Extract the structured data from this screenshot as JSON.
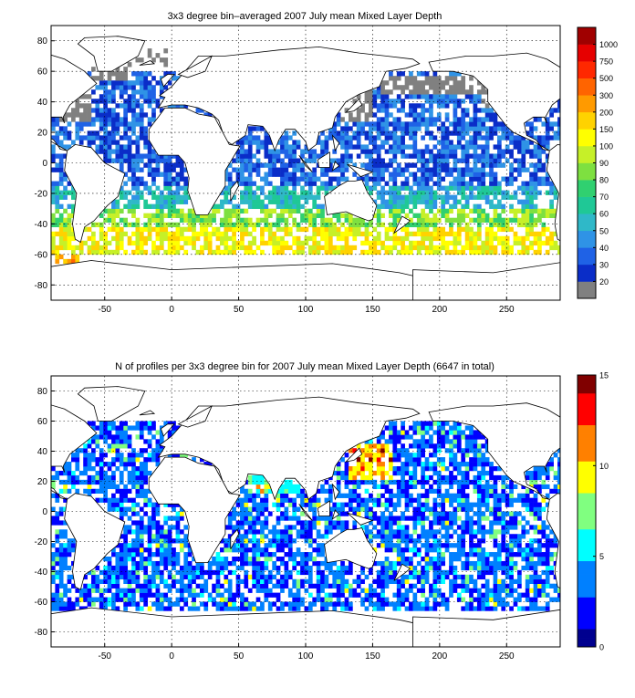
{
  "colors": {
    "land_fill": "#ffffff",
    "coast_stroke": "#000000",
    "grid_stroke": "#000000",
    "missing_gray": "#808080"
  },
  "chart_data": [
    {
      "type": "heatmap",
      "title": "3x3 degree bin–averaged 2007 July mean Mixed Layer Depth",
      "xlabel": "",
      "ylabel": "",
      "xlim": [
        -90,
        290
      ],
      "ylim": [
        -90,
        90
      ],
      "x_ticks": [
        -50,
        0,
        50,
        100,
        150,
        200,
        250
      ],
      "y_ticks": [
        80,
        60,
        40,
        20,
        0,
        -20,
        -40,
        -60,
        -80
      ],
      "grid": true,
      "bin_size_deg": 3,
      "colorbar": {
        "labels": [
          "20",
          "30",
          "40",
          "50",
          "60",
          "70",
          "80",
          "90",
          "100",
          "150",
          "200",
          "300",
          "500",
          "750",
          "1000"
        ],
        "colors": [
          "#808080",
          "#0a2dc8",
          "#1f62e6",
          "#2f93e6",
          "#2fb8c8",
          "#1fc896",
          "#30d070",
          "#7ee040",
          "#c6f028",
          "#ffff00",
          "#ffd200",
          "#ff9a00",
          "#ff6400",
          "#ff2800",
          "#e60000",
          "#a00000"
        ]
      },
      "regions": [
        {
          "lat": [
            63,
            75
          ],
          "lon": [
            -30,
            0
          ],
          "level": 0
        },
        {
          "lat": [
            27,
            48
          ],
          "lon": [
            -85,
            -60
          ],
          "level": 0
        },
        {
          "lat": [
            54,
            75
          ],
          "lon": [
            -60,
            -30
          ],
          "level": 0
        },
        {
          "lat": [
            27,
            60
          ],
          "lon": [
            125,
            150
          ],
          "level": 0
        },
        {
          "lat": [
            45,
            57
          ],
          "lon": [
            155,
            230
          ],
          "level": 0
        },
        {
          "lat": [
            36,
            60
          ],
          "lon": [
            230,
            245
          ],
          "level": 0
        },
        {
          "lat": [
            -15,
            60
          ],
          "lon": [
            -90,
            290
          ],
          "level": 2
        },
        {
          "lat": [
            -30,
            -15
          ],
          "lon": [
            -90,
            290
          ],
          "level": 4
        },
        {
          "lat": [
            -42,
            -30
          ],
          "lon": [
            -90,
            290
          ],
          "level": 7
        },
        {
          "lat": [
            -60,
            -42
          ],
          "lon": [
            -90,
            290
          ],
          "level": 9
        },
        {
          "lat": [
            -57,
            -42
          ],
          "lon": [
            90,
            200
          ],
          "level": 11
        },
        {
          "lat": [
            -66,
            -57
          ],
          "lon": [
            -90,
            -70
          ],
          "level": 11
        }
      ]
    },
    {
      "type": "heatmap",
      "title": "N of profiles per 3x3 degree bin for 2007 July mean Mixed Layer Depth  (6647 in total)",
      "xlabel": "",
      "ylabel": "",
      "xlim": [
        -90,
        290
      ],
      "ylim": [
        -90,
        90
      ],
      "x_ticks": [
        -50,
        0,
        50,
        100,
        150,
        200,
        250
      ],
      "y_ticks": [
        80,
        60,
        40,
        20,
        0,
        -20,
        -40,
        -60,
        -80
      ],
      "grid": true,
      "bin_size_deg": 3,
      "colorbar": {
        "range": [
          0,
          15
        ],
        "ticks": [
          0,
          5,
          10,
          15
        ],
        "colors": [
          "#00008f",
          "#0000ff",
          "#0080ff",
          "#00ffff",
          "#80ff80",
          "#ffff00",
          "#ff8000",
          "#ff0000",
          "#800000"
        ]
      },
      "regions": [
        {
          "lat": [
            -66,
            60
          ],
          "lon": [
            -90,
            290
          ],
          "value": 2
        },
        {
          "lat": [
            20,
            45
          ],
          "lon": [
            130,
            165
          ],
          "value": 9
        },
        {
          "lat": [
            10,
            30
          ],
          "lon": [
            55,
            95
          ],
          "value": 5
        }
      ]
    }
  ]
}
